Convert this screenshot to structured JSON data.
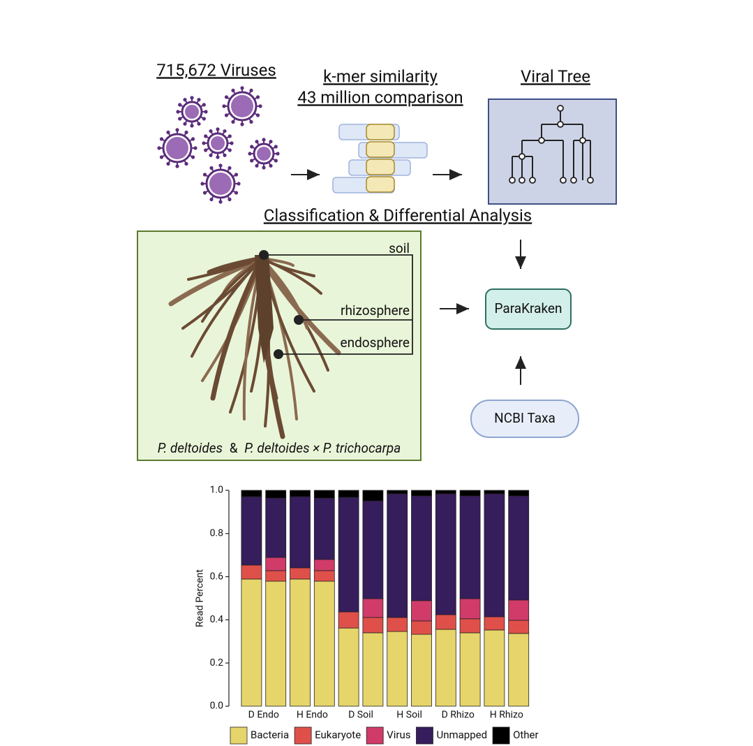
{
  "pipeline": {
    "viruses": "715,672 Viruses",
    "kmer_title": "k-mer similarity",
    "kmer_subtitle": "43 million comparison",
    "tree_title": "Viral Tree",
    "section_title": "Classification & Differential Analysis",
    "sample_labels": [
      "soil",
      "rhizosphere",
      "endosphere"
    ],
    "caption": [
      "P. deltoides",
      "&",
      "P. deltoides × P. trichocarpa"
    ],
    "nodes": [
      "ParaKraken",
      "NCBI Taxa"
    ]
  },
  "chart_data": {
    "type": "stacked_bar",
    "y_label": "Read Percent",
    "categories": [
      "D Endo",
      null,
      "H Endo",
      null,
      "D Soil",
      null,
      "H Soil",
      null,
      "D Rhizo",
      null,
      "H Rhizo",
      null
    ],
    "series": [
      {
        "name": "Bacteria",
        "color": "#e6d56a",
        "values": [
          0.589,
          0.579,
          0.589,
          0.579,
          0.362,
          0.34,
          0.346,
          0.333,
          0.356,
          0.34,
          0.353,
          0.337
        ]
      },
      {
        "name": "Eukaryote",
        "color": "#e0504a",
        "values": [
          0.065,
          0.049,
          0.052,
          0.049,
          0.075,
          0.071,
          0.065,
          0.062,
          0.068,
          0.065,
          0.061,
          0.061
        ]
      },
      {
        "name": "Virus",
        "color": "#d03b6a",
        "values": [
          0,
          0.061,
          0,
          0.052,
          0,
          0.087,
          0,
          0.094,
          0,
          0.093,
          0,
          0.094
        ]
      },
      {
        "name": "Unmapped",
        "color": "#361d5c",
        "values": [
          0.317,
          0.275,
          0.33,
          0.284,
          0.531,
          0.453,
          0.573,
          0.485,
          0.56,
          0.476,
          0.57,
          0.482
        ]
      },
      {
        "name": "Other",
        "color": "#000000",
        "values": [
          0.029,
          0.036,
          0.029,
          0.036,
          0.032,
          0.049,
          0.016,
          0.026,
          0.016,
          0.026,
          0.016,
          0.026
        ]
      }
    ],
    "ylim": [
      0,
      1
    ],
    "yticks": [
      {
        "value": 0,
        "label": "0.0"
      },
      0.2,
      0.4,
      0.6,
      0.8,
      {
        "value": 1,
        "label": "1.0"
      }
    ],
    "legend": "bottom"
  }
}
